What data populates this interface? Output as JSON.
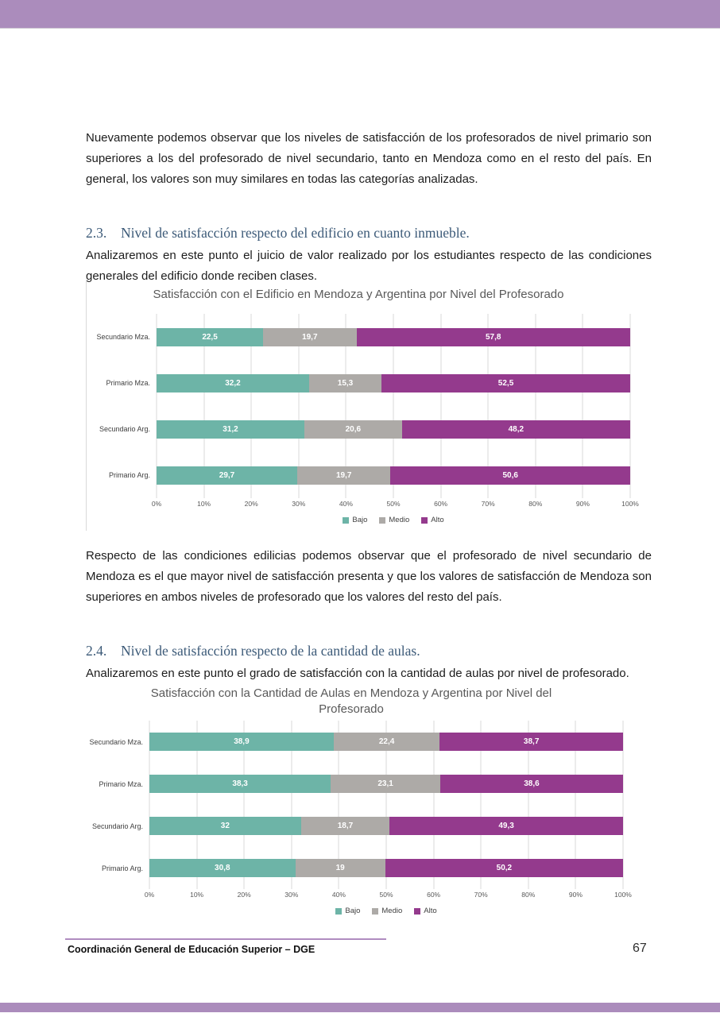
{
  "page": {
    "accent_bar_color": "#ab8cbc",
    "footer_rule_color": "#b08cc0"
  },
  "paragraphs": {
    "intro": "Nuevamente podemos observar que los niveles de satisfacción de los profesorados de nivel primario son superiores a los del profesorado de nivel secundario, tanto en Mendoza como en el resto del país. En general, los valores son muy similares en todas las categorías analizadas.",
    "edificio_desc": "Analizaremos en este punto el juicio de valor realizado por los estudiantes respecto de las condiciones generales del edificio donde reciben clases.",
    "edificio_conclusion": "Respecto de las condiciones edilicias podemos observar que el profesorado de nivel secundario de Mendoza es el que mayor nivel de satisfacción presenta y que los valores de satisfacción de Mendoza son superiores en ambos niveles de profesorado que los valores del resto del país.",
    "aulas_desc": "Analizaremos en este punto el grado de satisfacción con la cantidad de aulas por nivel de profesorado."
  },
  "sections": [
    {
      "number": "2.3.",
      "title": "Nivel de satisfacción respecto del edificio en cuanto inmueble.",
      "heading_color": "#3c5a78"
    },
    {
      "number": "2.4.",
      "title": "Nivel de satisfacción respecto de la cantidad de aulas.",
      "heading_color": "#3c5a78"
    }
  ],
  "footer": {
    "left_text": "Coordinación General de Educación Superior – DGE",
    "page_number": "67"
  },
  "chart_data": [
    {
      "type": "bar",
      "stacked": true,
      "orientation": "horizontal",
      "title": "Satisfacción con el Edificio en Mendoza y Argentina por Nivel del Profesorado",
      "categories": [
        "Secundario Mza.",
        "Primario Mza.",
        "Secundario Arg.",
        "Primario Arg."
      ],
      "series": [
        {
          "name": "Bajo",
          "color": "#6db4a7",
          "values": [
            22.5,
            32.2,
            31.2,
            29.7
          ],
          "labels": [
            "22,5",
            "32,2",
            "31,2",
            "29,7"
          ]
        },
        {
          "name": "Medio",
          "color": "#adaaa7",
          "values": [
            19.7,
            15.3,
            20.6,
            19.7
          ],
          "labels": [
            "19,7",
            "15,3",
            "20,6",
            "19,7"
          ]
        },
        {
          "name": "Alto",
          "color": "#943a8d",
          "values": [
            57.8,
            52.5,
            48.2,
            50.6
          ],
          "labels": [
            "57,8",
            "52,5",
            "48,2",
            "50,6"
          ]
        }
      ],
      "xlim": [
        0,
        100
      ],
      "x_ticks": [
        "0%",
        "10%",
        "20%",
        "30%",
        "40%",
        "50%",
        "60%",
        "70%",
        "80%",
        "90%",
        "100%"
      ],
      "xlabel": "",
      "ylabel": "",
      "grid": true,
      "legend_position": "bottom"
    },
    {
      "type": "bar",
      "stacked": true,
      "orientation": "horizontal",
      "title": "Satisfacción con la Cantidad de Aulas en Mendoza y Argentina por Nivel del Profesorado",
      "categories": [
        "Secundario Mza.",
        "Primario Mza.",
        "Secundario Arg.",
        "Primario Arg."
      ],
      "series": [
        {
          "name": "Bajo",
          "color": "#6db4a7",
          "values": [
            38.9,
            38.3,
            32.0,
            30.8
          ],
          "labels": [
            "38,9",
            "38,3",
            "32",
            "30,8"
          ]
        },
        {
          "name": "Medio",
          "color": "#adaaa7",
          "values": [
            22.4,
            23.1,
            18.7,
            19.0
          ],
          "labels": [
            "22,4",
            "23,1",
            "18,7",
            "19"
          ]
        },
        {
          "name": "Alto",
          "color": "#943a8d",
          "values": [
            38.7,
            38.6,
            49.3,
            50.2
          ],
          "labels": [
            "38,7",
            "38,6",
            "49,3",
            "50,2"
          ]
        }
      ],
      "xlim": [
        0,
        100
      ],
      "x_ticks": [
        "0%",
        "10%",
        "20%",
        "30%",
        "40%",
        "50%",
        "60%",
        "70%",
        "80%",
        "90%",
        "100%"
      ],
      "xlabel": "",
      "ylabel": "",
      "grid": true,
      "legend_position": "bottom"
    }
  ]
}
